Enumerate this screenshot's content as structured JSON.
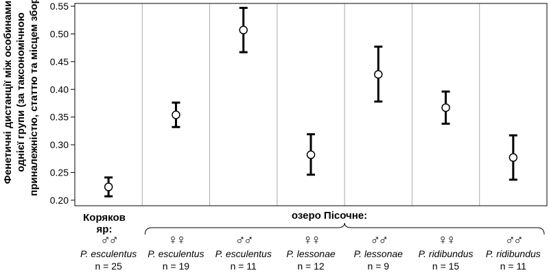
{
  "chart_data": {
    "type": "scatter",
    "ylabel": [
      "Фенетичні дистанції між особинами",
      "однієї групи (за таксономічною",
      "приналежністю, статтю та місцем збору)"
    ],
    "ylim": [
      0.19,
      0.555
    ],
    "yticks": [
      "0.20",
      "0.25",
      "0.30",
      "0.35",
      "0.40",
      "0.45",
      "0.50",
      "0.55"
    ],
    "grid": "vertical",
    "location_labels": {
      "left": "Коряков яр:",
      "right": "озеро Пісочне:"
    },
    "groups": [
      {
        "sex": "♂♂",
        "species": "P. esculentus",
        "n": "n = 25",
        "mean": 0.224,
        "lower": 0.207,
        "upper": 0.241
      },
      {
        "sex": "♀♀",
        "species": "P. esculentus",
        "n": "n = 19",
        "mean": 0.354,
        "lower": 0.332,
        "upper": 0.376
      },
      {
        "sex": "♂♂",
        "species": "P. esculentus",
        "n": "n = 11",
        "mean": 0.507,
        "lower": 0.467,
        "upper": 0.547
      },
      {
        "sex": "♀♀",
        "species": "P. lessonae",
        "n": "n = 12",
        "mean": 0.282,
        "lower": 0.246,
        "upper": 0.319
      },
      {
        "sex": "♂♂",
        "species": "P. lessonae",
        "n": "n = 9",
        "mean": 0.427,
        "lower": 0.378,
        "upper": 0.477
      },
      {
        "sex": "♀♀",
        "species": "P. ridibundus",
        "n": "n = 15",
        "mean": 0.367,
        "lower": 0.338,
        "upper": 0.396
      },
      {
        "sex": "♂♂",
        "species": "P. ridibundus",
        "n": "n = 11",
        "mean": 0.277,
        "lower": 0.237,
        "upper": 0.317
      }
    ],
    "colors": {
      "axis": "#000000",
      "grid": "#aaaaaa",
      "marker_fill": "#ffffff"
    }
  }
}
